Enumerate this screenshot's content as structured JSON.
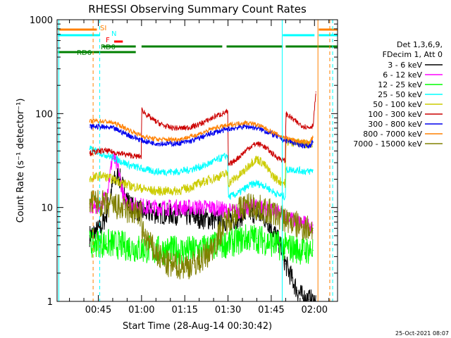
{
  "chart_data": {
    "type": "line",
    "title": "RHESSI Observing Summary Count Rates",
    "xlabel": "Start Time (28-Aug-14 00:30:42)",
    "ylabel": "Count Rate (s⁻¹ detector⁻¹)",
    "yscale": "log",
    "ylim": [
      1,
      1000
    ],
    "xlim_minutes": [
      30.7,
      128.0
    ],
    "x_ticks": [
      {
        "label": "00:45",
        "min": 45
      },
      {
        "label": "01:00",
        "min": 60
      },
      {
        "label": "01:15",
        "min": 75
      },
      {
        "label": "01:30",
        "min": 90
      },
      {
        "label": "01:45",
        "min": 105
      },
      {
        "label": "02:00",
        "min": 120
      }
    ],
    "y_ticks": [
      {
        "label": "1",
        "value": 1
      },
      {
        "label": "10",
        "value": 10
      },
      {
        "label": "100",
        "value": 100
      },
      {
        "label": "1000",
        "value": 1000
      }
    ],
    "legend_header": [
      "Det 1,3,6,9,",
      "FDecim 1, Att 0"
    ],
    "series": [
      {
        "name": "3 - 6 keV",
        "color": "#000000",
        "x": [
          42,
          44,
          46,
          48,
          50,
          52,
          54,
          56,
          58,
          60,
          62,
          64,
          66,
          68,
          70,
          72,
          74,
          76,
          78,
          80,
          82,
          84,
          86,
          88,
          90,
          92,
          94,
          96,
          98,
          100,
          102,
          104,
          106,
          108,
          110,
          112,
          114,
          116,
          118,
          119.5,
          120.5
        ],
        "y": [
          5,
          5.5,
          6,
          9,
          18,
          22,
          15,
          10.5,
          9.5,
          9,
          8.8,
          8.7,
          8.7,
          8.6,
          8.5,
          8.5,
          8.4,
          8.2,
          8,
          7.8,
          7.6,
          7.5,
          7.4,
          7.3,
          7.2,
          7.5,
          8,
          8.5,
          9,
          8.5,
          8,
          7,
          5.5,
          4,
          2.5,
          1.8,
          1.3,
          1.1,
          1.05,
          1,
          1
        ]
      },
      {
        "name": "6 - 12 keV",
        "color": "#ff00ff",
        "x": [
          42,
          44,
          46,
          48,
          50,
          52,
          54,
          56,
          58,
          60,
          62,
          64,
          66,
          68,
          70,
          72,
          74,
          76,
          78,
          80,
          82,
          84,
          86,
          88,
          90,
          92,
          94,
          96,
          98,
          100,
          102,
          104,
          106,
          108,
          110,
          112,
          114,
          116,
          118,
          119.5
        ],
        "y": [
          10,
          10,
          11,
          14,
          35,
          25,
          12,
          11,
          10.5,
          10.5,
          10,
          10,
          10,
          10,
          10,
          10,
          10,
          10,
          10,
          10,
          10,
          10,
          9.8,
          9.5,
          9.2,
          9,
          9.2,
          9.5,
          10,
          10.5,
          10,
          9.5,
          9,
          8.5,
          8,
          7.5,
          7,
          6.8,
          6.5,
          6.5
        ]
      },
      {
        "name": "12 - 25 keV",
        "color": "#00ff00",
        "x": [
          42,
          44,
          46,
          48,
          50,
          52,
          54,
          56,
          58,
          60,
          62,
          64,
          66,
          68,
          70,
          72,
          74,
          76,
          78,
          80,
          82,
          84,
          86,
          88,
          90,
          92,
          94,
          96,
          98,
          100,
          102,
          104,
          106,
          108,
          110,
          112,
          114,
          116,
          118,
          119.5
        ],
        "y": [
          4,
          4.2,
          4.2,
          4.1,
          4.1,
          4,
          3.9,
          3.8,
          3.7,
          3.6,
          3.6,
          3.5,
          3.5,
          3.5,
          3.5,
          3.5,
          3.5,
          3.5,
          3.5,
          3.6,
          3.7,
          3.8,
          3.9,
          4,
          4.2,
          4.3,
          4.5,
          4.7,
          4.8,
          4.7,
          4.5,
          4.3,
          4.1,
          3.9,
          3.8,
          3.7,
          3.6,
          3.5,
          3.5,
          3.5
        ]
      },
      {
        "name": "25 - 50 keV",
        "color": "#00ffff",
        "x": [
          42,
          44,
          46,
          48,
          50,
          52,
          54,
          56,
          58,
          60,
          62,
          64,
          66,
          68,
          70,
          72,
          74,
          76,
          78,
          80,
          82,
          84,
          86,
          88,
          89.9,
          90.1,
          92,
          94,
          96,
          98,
          100,
          102,
          104,
          106,
          108,
          109.9,
          110.1,
          112,
          114,
          116,
          118,
          119.5
        ],
        "y": [
          42,
          40,
          38,
          36,
          34,
          32,
          30,
          28,
          27,
          26,
          25,
          24.5,
          24,
          24,
          24,
          24,
          24.5,
          25,
          26,
          27,
          28,
          30,
          32,
          34,
          36,
          13,
          13.5,
          14.5,
          16,
          17.5,
          18,
          17.5,
          16,
          14.5,
          13.5,
          13,
          25,
          25.5,
          25,
          24.5,
          24,
          25
        ]
      },
      {
        "name": "50 - 100 keV",
        "color": "#cccc00",
        "x": [
          42,
          44,
          46,
          48,
          50,
          52,
          54,
          56,
          58,
          60,
          62,
          64,
          66,
          68,
          70,
          72,
          74,
          76,
          78,
          80,
          82,
          84,
          86,
          88,
          89.9,
          90.1,
          92,
          94,
          96,
          98,
          100,
          102,
          104,
          106,
          108,
          109.9,
          110.1,
          112,
          114,
          116,
          118,
          119.5
        ],
        "y": [
          20,
          21,
          22,
          21,
          20,
          19,
          18,
          17,
          16.5,
          16,
          15.5,
          15,
          15,
          15,
          15,
          15,
          15.5,
          16,
          17,
          18,
          19,
          20,
          21,
          22,
          23,
          18,
          20,
          22,
          25,
          30,
          33,
          30,
          25,
          21,
          19,
          18,
          50,
          50,
          49,
          48,
          48,
          49
        ]
      },
      {
        "name": "100 - 300 keV",
        "color": "#cc0000",
        "x": [
          42,
          44,
          46,
          48,
          50,
          52,
          54,
          56,
          58,
          59.9,
          60.1,
          62,
          64,
          66,
          68,
          70,
          72,
          74,
          76,
          78,
          80,
          82,
          84,
          86,
          88,
          89.9,
          90.1,
          92,
          94,
          96,
          98,
          100,
          102,
          104,
          106,
          108,
          109.9,
          110.1,
          112,
          114,
          116,
          118,
          119.5,
          120.5
        ],
        "y": [
          38,
          39,
          40,
          40,
          39,
          38,
          37,
          36,
          35,
          35,
          110,
          96,
          86,
          79,
          74,
          71,
          70,
          70,
          71,
          73,
          77,
          82,
          88,
          95,
          100,
          104,
          28,
          31,
          35,
          40,
          45,
          48,
          46,
          41,
          36,
          33,
          31,
          100,
          90,
          80,
          74,
          71,
          75,
          170
        ]
      },
      {
        "name": "300 - 800 keV",
        "color": "#0000ee",
        "x": [
          42,
          44,
          46,
          48,
          50,
          52,
          54,
          56,
          58,
          60,
          62,
          64,
          66,
          68,
          70,
          72,
          74,
          76,
          78,
          80,
          82,
          84,
          86,
          88,
          90,
          92,
          94,
          96,
          98,
          100,
          102,
          104,
          106,
          108,
          110,
          112,
          114,
          116,
          118,
          119.5
        ],
        "y": [
          72,
          73,
          72,
          71,
          70,
          66,
          62,
          58,
          55,
          52,
          50,
          49,
          48,
          48,
          48,
          48,
          49,
          50,
          52,
          55,
          58,
          61,
          64,
          66,
          68,
          70,
          72,
          73,
          72,
          70,
          67,
          63,
          59,
          55,
          52,
          50,
          48,
          46,
          45,
          50
        ]
      },
      {
        "name": "800 - 7000 keV",
        "color": "#ff8000",
        "x": [
          42,
          44,
          46,
          48,
          50,
          52,
          54,
          56,
          58,
          60,
          62,
          64,
          66,
          68,
          70,
          72,
          74,
          76,
          78,
          80,
          82,
          84,
          86,
          88,
          90,
          92,
          94,
          96,
          98,
          100,
          102,
          104,
          106,
          108,
          110,
          112,
          114,
          116,
          118,
          119.5
        ],
        "y": [
          82,
          84,
          83,
          82,
          80,
          76,
          71,
          66,
          62,
          58,
          56,
          54,
          53,
          53,
          53,
          53,
          54,
          56,
          58,
          61,
          64,
          68,
          71,
          73,
          75,
          77,
          79,
          80,
          79,
          76,
          72,
          67,
          62,
          58,
          55,
          53,
          51,
          50,
          49,
          56
        ]
      },
      {
        "name": "7000 - 15000 keV",
        "color": "#808000",
        "x": [
          42,
          44,
          46,
          48,
          50,
          52,
          54,
          56,
          58,
          59.9,
          60.1,
          62,
          64,
          66,
          68,
          70,
          72,
          74,
          76,
          78,
          80,
          82,
          84,
          86,
          88,
          90,
          92,
          94,
          96,
          98,
          100,
          102,
          104,
          106,
          108,
          110,
          112,
          114,
          116,
          118,
          119.5
        ],
        "y": [
          11,
          11.5,
          11,
          10.5,
          10.5,
          10,
          9.5,
          9,
          8.7,
          8.5,
          5.5,
          4.5,
          3.6,
          3,
          2.6,
          2.4,
          2.4,
          2.4,
          2.4,
          2.5,
          2.7,
          3,
          3.5,
          4.5,
          6,
          7.5,
          8.5,
          9.5,
          10.5,
          10.5,
          10,
          9.5,
          9,
          8.5,
          8,
          7.5,
          7,
          6.5,
          6.2,
          6,
          6
        ]
      }
    ],
    "flag_bars": [
      {
        "label": "SI",
        "color": "#ff8000",
        "segments": [
          [
            31,
            44.5
          ],
          [
            121.5,
            128
          ]
        ]
      },
      {
        "label": "N",
        "color": "#00ffff",
        "segments": [
          [
            31,
            45.5
          ],
          [
            109,
            120
          ],
          [
            121.5,
            128
          ]
        ]
      },
      {
        "label": "F",
        "color": "#ff0000",
        "segments": [
          [
            50.5,
            53.5
          ]
        ]
      },
      {
        "label": "RD0",
        "color": "#008000",
        "segments": [
          [
            46.5,
            58
          ],
          [
            60,
            88
          ],
          [
            89.5,
            109
          ],
          [
            110,
            128
          ]
        ]
      },
      {
        "label": "RD6",
        "color": "#008000",
        "segments": [
          [
            31,
            58
          ]
        ]
      }
    ],
    "vertical_markers": [
      {
        "min": 31.3,
        "color": "#00ffff",
        "style": "solid"
      },
      {
        "min": 43.2,
        "color": "#ff8000",
        "style": "dashed"
      },
      {
        "min": 45.5,
        "color": "#00ffff",
        "style": "dashed"
      },
      {
        "min": 108.8,
        "color": "#00ffff",
        "style": "solid"
      },
      {
        "min": 121.2,
        "color": "#ff8000",
        "style": "solid"
      },
      {
        "min": 125.3,
        "color": "#ff8000",
        "style": "dashed"
      },
      {
        "min": 126.3,
        "color": "#00ffff",
        "style": "dashed"
      }
    ],
    "footer_date": "25-Oct-2021 08:07"
  }
}
